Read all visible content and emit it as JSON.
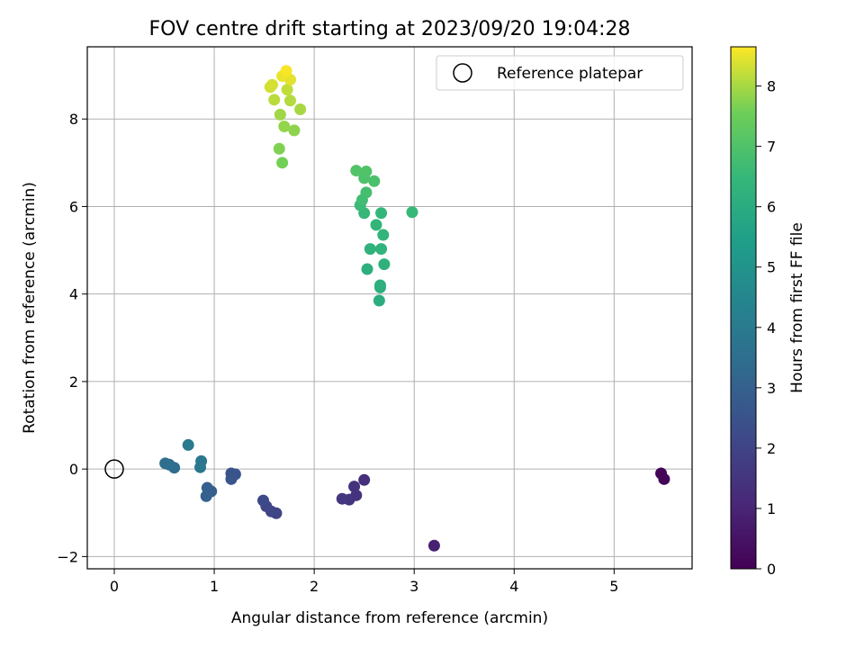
{
  "chart_data": {
    "type": "scatter",
    "title": "FOV centre drift starting at 2023/09/20 19:04:28",
    "xlabel": "Angular distance from reference (arcmin)",
    "ylabel": "Rotation from reference (arcmin)",
    "xlim": [
      -0.27,
      5.78
    ],
    "ylim": [
      -2.28,
      9.65
    ],
    "xticks": [
      0,
      1,
      2,
      3,
      4,
      5
    ],
    "yticks": [
      -2,
      0,
      2,
      4,
      6,
      8
    ],
    "grid": true,
    "legend": {
      "position": "top-right",
      "entries": [
        "Reference platepar"
      ]
    },
    "colorbar": {
      "label": "Hours from first FF file",
      "range": [
        0,
        8.65
      ],
      "ticks": [
        0,
        1,
        2,
        3,
        4,
        5,
        6,
        7,
        8
      ],
      "colormap": "viridis"
    },
    "reference_point": {
      "x": 0,
      "y": 0
    },
    "points": [
      {
        "x": 5.47,
        "y": -0.1,
        "hours": 0.05
      },
      {
        "x": 5.5,
        "y": -0.23,
        "hours": 0.1
      },
      {
        "x": 3.2,
        "y": -1.75,
        "hours": 0.9
      },
      {
        "x": 2.5,
        "y": -0.25,
        "hours": 1.3
      },
      {
        "x": 2.4,
        "y": -0.4,
        "hours": 1.4
      },
      {
        "x": 2.42,
        "y": -0.6,
        "hours": 1.45
      },
      {
        "x": 2.35,
        "y": -0.7,
        "hours": 1.5
      },
      {
        "x": 2.28,
        "y": -0.68,
        "hours": 1.55
      },
      {
        "x": 1.62,
        "y": -1.01,
        "hours": 2.0
      },
      {
        "x": 1.57,
        "y": -0.97,
        "hours": 2.05
      },
      {
        "x": 1.52,
        "y": -0.85,
        "hours": 2.1
      },
      {
        "x": 1.49,
        "y": -0.72,
        "hours": 2.15
      },
      {
        "x": 1.21,
        "y": -0.12,
        "hours": 2.5
      },
      {
        "x": 1.17,
        "y": -0.1,
        "hours": 2.55
      },
      {
        "x": 1.17,
        "y": -0.23,
        "hours": 2.6
      },
      {
        "x": 0.97,
        "y": -0.51,
        "hours": 2.9
      },
      {
        "x": 0.93,
        "y": -0.43,
        "hours": 2.95
      },
      {
        "x": 0.92,
        "y": -0.62,
        "hours": 3.0
      },
      {
        "x": 0.6,
        "y": 0.03,
        "hours": 3.4
      },
      {
        "x": 0.55,
        "y": 0.1,
        "hours": 3.5
      },
      {
        "x": 0.51,
        "y": 0.13,
        "hours": 3.55
      },
      {
        "x": 0.87,
        "y": 0.18,
        "hours": 3.85
      },
      {
        "x": 0.86,
        "y": 0.04,
        "hours": 3.9
      },
      {
        "x": 0.74,
        "y": 0.55,
        "hours": 4.0
      },
      {
        "x": 2.65,
        "y": 3.85,
        "hours": 6.05
      },
      {
        "x": 2.66,
        "y": 4.15,
        "hours": 6.1
      },
      {
        "x": 2.66,
        "y": 4.2,
        "hours": 6.12
      },
      {
        "x": 2.53,
        "y": 4.57,
        "hours": 6.15
      },
      {
        "x": 2.7,
        "y": 4.68,
        "hours": 6.2
      },
      {
        "x": 2.56,
        "y": 5.03,
        "hours": 6.25
      },
      {
        "x": 2.67,
        "y": 5.03,
        "hours": 6.3
      },
      {
        "x": 2.69,
        "y": 5.35,
        "hours": 6.35
      },
      {
        "x": 2.62,
        "y": 5.58,
        "hours": 6.4
      },
      {
        "x": 2.67,
        "y": 5.85,
        "hours": 6.45
      },
      {
        "x": 2.5,
        "y": 5.85,
        "hours": 6.5
      },
      {
        "x": 2.98,
        "y": 5.87,
        "hours": 6.55
      },
      {
        "x": 2.46,
        "y": 6.03,
        "hours": 6.6
      },
      {
        "x": 2.48,
        "y": 6.15,
        "hours": 6.7
      },
      {
        "x": 2.52,
        "y": 6.32,
        "hours": 6.8
      },
      {
        "x": 2.6,
        "y": 6.58,
        "hours": 6.9
      },
      {
        "x": 2.5,
        "y": 6.65,
        "hours": 6.95
      },
      {
        "x": 2.52,
        "y": 6.8,
        "hours": 7.0
      },
      {
        "x": 2.42,
        "y": 6.82,
        "hours": 7.05
      },
      {
        "x": 1.68,
        "y": 7.0,
        "hours": 7.6
      },
      {
        "x": 1.65,
        "y": 7.32,
        "hours": 7.7
      },
      {
        "x": 1.8,
        "y": 7.74,
        "hours": 7.8
      },
      {
        "x": 1.7,
        "y": 7.83,
        "hours": 7.85
      },
      {
        "x": 1.66,
        "y": 8.1,
        "hours": 7.95
      },
      {
        "x": 1.86,
        "y": 8.22,
        "hours": 8.0
      },
      {
        "x": 1.76,
        "y": 8.42,
        "hours": 8.1
      },
      {
        "x": 1.6,
        "y": 8.44,
        "hours": 8.15
      },
      {
        "x": 1.73,
        "y": 8.67,
        "hours": 8.2
      },
      {
        "x": 1.56,
        "y": 8.73,
        "hours": 8.3
      },
      {
        "x": 1.58,
        "y": 8.78,
        "hours": 8.35
      },
      {
        "x": 1.76,
        "y": 8.9,
        "hours": 8.45
      },
      {
        "x": 1.68,
        "y": 8.98,
        "hours": 8.5
      },
      {
        "x": 1.72,
        "y": 9.1,
        "hours": 8.6
      }
    ]
  }
}
